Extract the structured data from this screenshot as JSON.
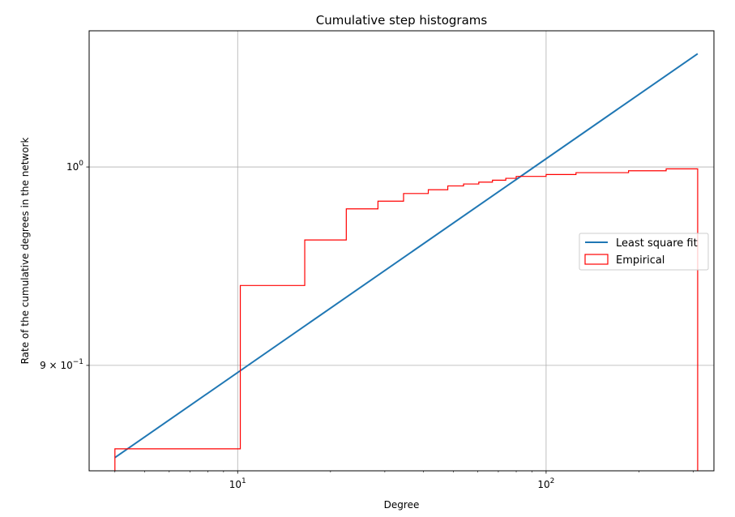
{
  "chart_data": {
    "type": "line",
    "title": "Cumulative step histograms",
    "xlabel": "Degree",
    "ylabel": "Rate of the cumulative degrees in the network",
    "x_scale": "log",
    "y_scale": "log",
    "xlim": [
      3.3,
      350
    ],
    "ylim": [
      0.851,
      1.075
    ],
    "grid": true,
    "legend_position": "right",
    "x_ticks": [
      {
        "value": 10,
        "base": "10",
        "exp": "1"
      },
      {
        "value": 100,
        "base": "10",
        "exp": "2"
      }
    ],
    "y_ticks": [
      {
        "value": 1.0,
        "mant": "",
        "base": "10",
        "exp": "0"
      },
      {
        "value": 0.9,
        "mant": "9 × ",
        "base": "10",
        "exp": "−1"
      }
    ],
    "series": [
      {
        "name": "Least square fit",
        "kind": "line",
        "color": "#1f77b4",
        "x": [
          4.0,
          310.0
        ],
        "y": [
          0.857,
          1.062
        ]
      },
      {
        "name": "Empirical",
        "kind": "step",
        "color": "#ff0000",
        "edges": [
          4.0,
          10.2,
          16.5,
          22.5,
          28.5,
          34.5,
          41.5,
          48.0,
          54.0,
          60.5,
          67.0,
          74.0,
          80.0,
          100.0,
          125.0,
          185.0,
          245.0,
          310.0
        ],
        "values": [
          0.861,
          0.939,
          0.962,
          0.978,
          0.982,
          0.986,
          0.988,
          0.99,
          0.991,
          0.992,
          0.993,
          0.994,
          0.995,
          0.996,
          0.997,
          0.998,
          0.999
        ]
      }
    ]
  }
}
